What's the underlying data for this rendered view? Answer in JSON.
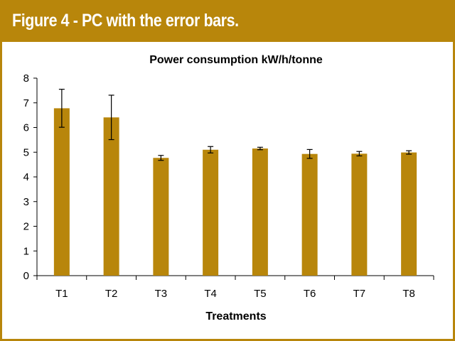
{
  "figure": {
    "title": "Figure 4 - PC with the error bars."
  },
  "colors": {
    "accent": "#b8860b",
    "bar": "#b8860b",
    "text": "#000000"
  },
  "chart_data": {
    "type": "bar",
    "title": "Power consumption kW/h/tonne",
    "xlabel": "Treatments",
    "ylabel": "",
    "ylim": [
      0,
      8
    ],
    "yticks": [
      0,
      1,
      2,
      3,
      4,
      5,
      6,
      7,
      8
    ],
    "categories": [
      "T1",
      "T2",
      "T3",
      "T4",
      "T5",
      "T6",
      "T7",
      "T8"
    ],
    "values": [
      6.78,
      6.41,
      4.77,
      5.1,
      5.15,
      4.93,
      4.94,
      4.99
    ],
    "error": [
      0.77,
      0.9,
      0.1,
      0.13,
      0.05,
      0.18,
      0.09,
      0.07
    ],
    "grid": false,
    "legend": "none"
  }
}
